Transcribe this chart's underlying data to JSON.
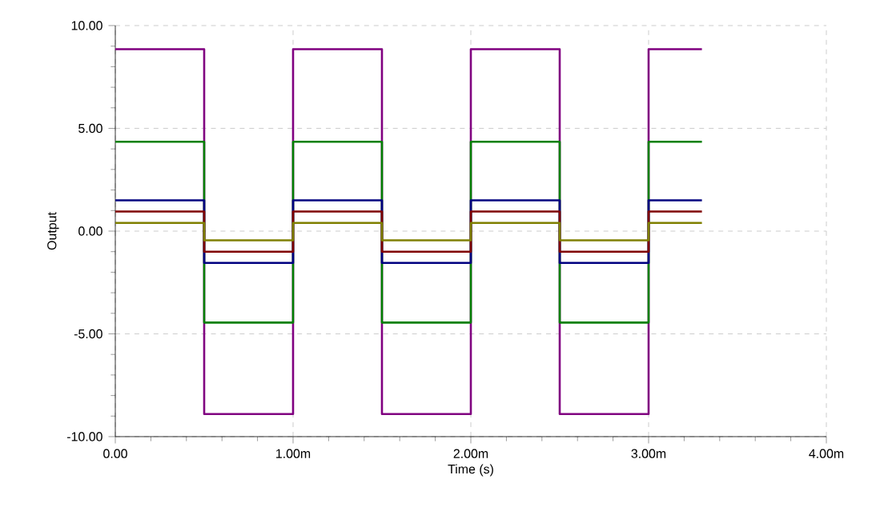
{
  "chart_data": {
    "type": "step",
    "xlabel": "Time (s)",
    "ylabel": "Output",
    "x": [
      0,
      0.5,
      1,
      1.5,
      2,
      2.5,
      3,
      3.3
    ],
    "series": [
      {
        "color": "#800080",
        "values": [
          8.85,
          -8.9,
          8.85,
          -8.9,
          8.85,
          -8.9,
          8.85,
          8.85
        ]
      },
      {
        "color": "#008000",
        "values": [
          4.35,
          -4.45,
          4.35,
          -4.45,
          4.35,
          -4.45,
          4.35,
          4.35
        ]
      },
      {
        "color": "#000080",
        "values": [
          1.5,
          -1.55,
          1.5,
          -1.55,
          1.5,
          -1.55,
          1.5,
          1.5
        ]
      },
      {
        "color": "#800000",
        "values": [
          0.95,
          -1.0,
          0.95,
          -1.0,
          0.95,
          -1.0,
          0.95,
          0.95
        ]
      },
      {
        "color": "#808000",
        "values": [
          0.4,
          -0.45,
          0.4,
          -0.45,
          0.4,
          -0.45,
          0.4,
          0.4
        ]
      }
    ],
    "xlim": [
      0,
      4
    ],
    "ylim": [
      -10,
      10
    ],
    "xticks": [
      {
        "value": 0,
        "label": "0.00"
      },
      {
        "value": 1,
        "label": "1.00m"
      },
      {
        "value": 2,
        "label": "2.00m"
      },
      {
        "value": 3,
        "label": "3.00m"
      },
      {
        "value": 4,
        "label": "4.00m"
      }
    ],
    "yticks": [
      {
        "value": -10,
        "label": "-10.00"
      },
      {
        "value": -5,
        "label": "-5.00"
      },
      {
        "value": 0,
        "label": "0.00"
      },
      {
        "value": 5,
        "label": "5.00"
      },
      {
        "value": 10,
        "label": "10.00"
      }
    ],
    "grid": true,
    "marker": "none",
    "line_style": "solid"
  }
}
